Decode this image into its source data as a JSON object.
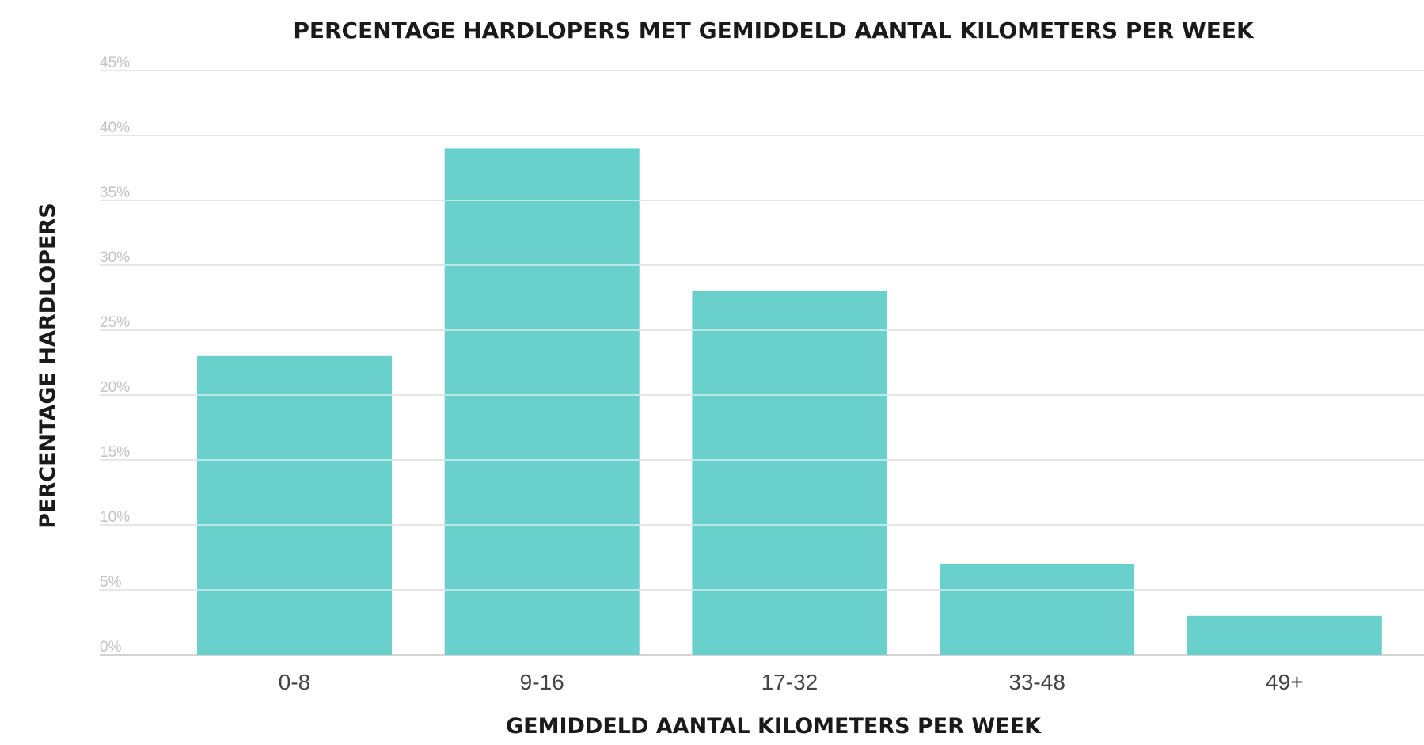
{
  "chart_data": {
    "type": "bar",
    "title": "PERCENTAGE HARDLOPERS MET GEMIDDELD AANTAL KILOMETERS PER WEEK",
    "xlabel": "GEMIDDELD AANTAL KILOMETERS PER WEEK",
    "ylabel": "PERCENTAGE HARDLOPERS",
    "categories": [
      "0-8",
      "9-16",
      "17-32",
      "33-48",
      "49+"
    ],
    "values": [
      23,
      39,
      28,
      7,
      3
    ],
    "ylim": [
      0,
      45
    ],
    "yticks": [
      0,
      5,
      10,
      15,
      20,
      25,
      30,
      35,
      40,
      45
    ],
    "ytick_labels": [
      "0%",
      "5%",
      "10%",
      "15%",
      "20%",
      "25%",
      "30%",
      "35%",
      "40%",
      "45%"
    ],
    "grid": true,
    "colors": {
      "bar": "#69d0cc",
      "grid": "#dedede",
      "grid_over_bar": "#e6f7f6",
      "axis": "#d4d4d4"
    }
  }
}
